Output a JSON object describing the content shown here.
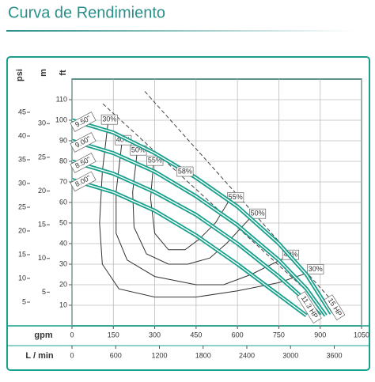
{
  "title": "Curva de Rendimiento",
  "chart_data": {
    "type": "line",
    "x_label": "gpm",
    "x2_label": "L / min",
    "y_label": "ft",
    "y2_label": "m",
    "y3_label": "psi",
    "xlim": [
      0,
      1050
    ],
    "xticks": [
      0,
      150,
      300,
      450,
      600,
      750,
      900,
      1050
    ],
    "x2lim": [
      0,
      3975
    ],
    "x2ticks": [
      0,
      600,
      1200,
      1800,
      2400,
      3000,
      3600
    ],
    "ylim": [
      0,
      120
    ],
    "yticks": [
      10,
      20,
      30,
      40,
      50,
      60,
      70,
      80,
      90,
      100,
      110
    ],
    "y2lim": [
      0,
      36.6
    ],
    "y2ticks": [
      5,
      10,
      15,
      20,
      25,
      30
    ],
    "y3lim": [
      0,
      52
    ],
    "y3ticks": [
      5,
      10,
      15,
      20,
      25,
      30,
      35,
      40,
      45
    ],
    "grid": true,
    "series": [
      {
        "name": "9.50\"",
        "color": "#17a08c",
        "x": [
          0,
          150,
          300,
          450,
          600,
          750,
          850,
          940
        ],
        "values": [
          100,
          94,
          84,
          72,
          58,
          40,
          25,
          6
        ]
      },
      {
        "name": "9.00\"",
        "color": "#17a08c",
        "x": [
          0,
          150,
          300,
          450,
          600,
          750,
          850,
          920
        ],
        "values": [
          90,
          84,
          75,
          63,
          49,
          32,
          18,
          5
        ]
      },
      {
        "name": "8.50\"",
        "color": "#17a08c",
        "x": [
          0,
          150,
          300,
          450,
          600,
          750,
          850,
          900
        ],
        "values": [
          80,
          74,
          65,
          54,
          40,
          24,
          12,
          5
        ]
      },
      {
        "name": "8.00\"",
        "color": "#17a08c",
        "x": [
          0,
          150,
          300,
          450,
          600,
          750,
          850
        ],
        "values": [
          71,
          65,
          56,
          44,
          30,
          15,
          5
        ]
      }
    ],
    "efficiency": [
      {
        "name": "30%",
        "color": "#333333",
        "x": [
          130,
          110,
          100,
          110,
          170,
          300,
          450,
          600,
          750,
          860
        ],
        "values": [
          98,
          75,
          50,
          30,
          18,
          14,
          14,
          17,
          21,
          26
        ]
      },
      {
        "name": "40%",
        "color": "#333333",
        "x": [
          180,
          160,
          160,
          200,
          300,
          450,
          550,
          650,
          770
        ],
        "values": [
          88,
          65,
          45,
          32,
          24,
          20,
          20,
          25,
          33
        ]
      },
      {
        "name": "50%",
        "color": "#333333",
        "x": [
          235,
          220,
          225,
          270,
          350,
          420,
          500,
          560,
          650
        ],
        "values": [
          83,
          65,
          48,
          35,
          30,
          30,
          33,
          40,
          53
        ]
      },
      {
        "name": "55%",
        "color": "#333333",
        "x": [
          295,
          285,
          300,
          350,
          410,
          460,
          520,
          570
        ],
        "values": [
          78,
          62,
          45,
          37,
          37,
          42,
          50,
          61
        ]
      }
    ],
    "limit_lines": [
      {
        "x": [
          112,
          843
        ],
        "values": [
          108,
          18
        ]
      },
      {
        "x": [
          264,
          944
        ],
        "values": [
          114,
          12
        ]
      }
    ],
    "annotations": [
      "58%",
      "11.3 HP",
      "15 HP"
    ]
  }
}
